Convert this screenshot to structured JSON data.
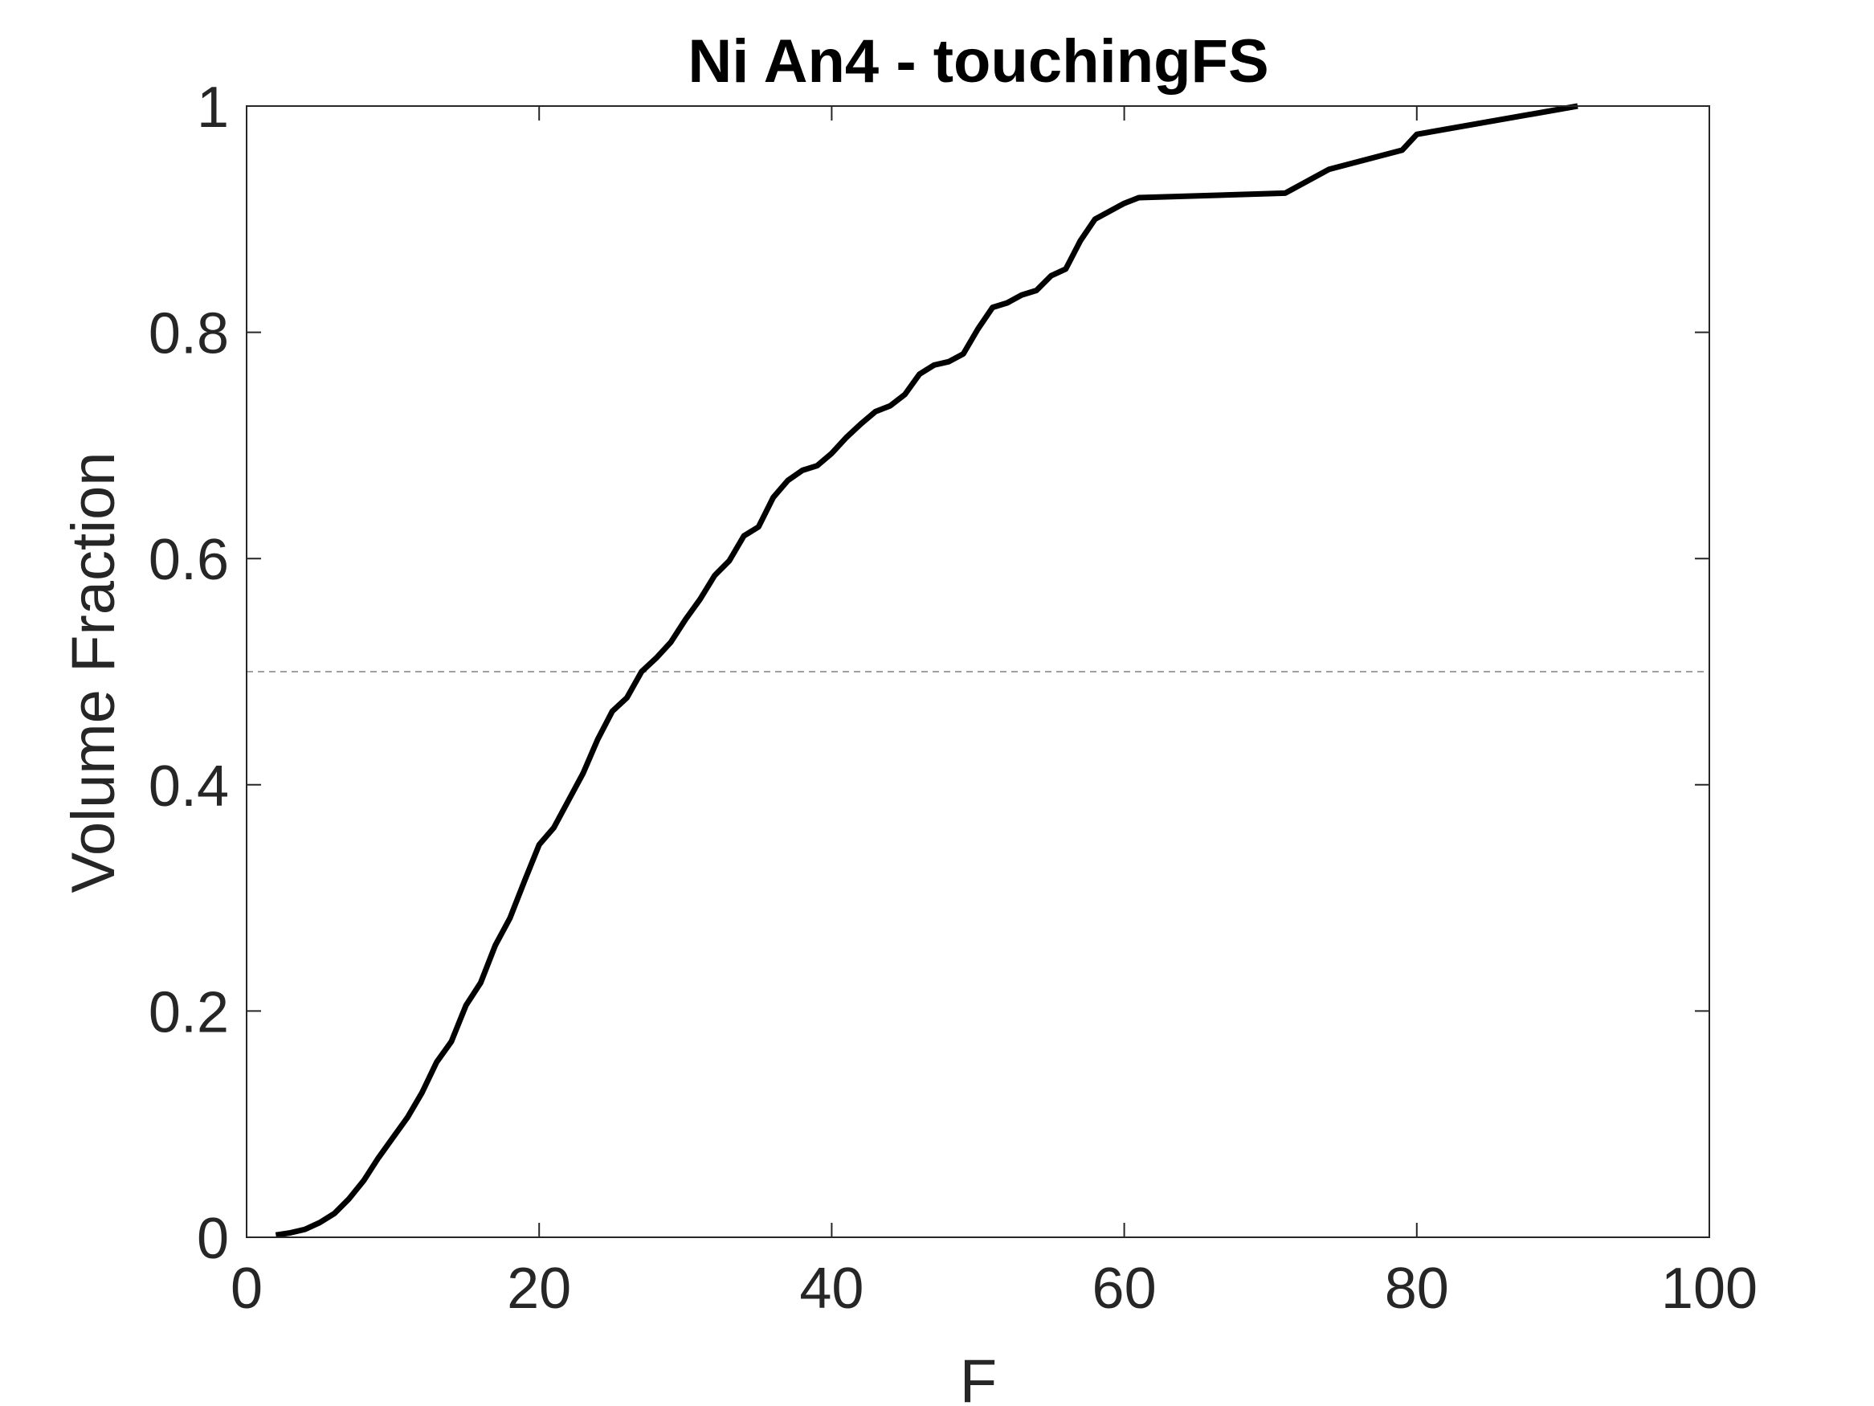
{
  "chart_data": {
    "type": "line",
    "title": "Ni An4 - touchingFS",
    "xlabel": "F",
    "ylabel": "Volume Fraction",
    "xlim": [
      0,
      100
    ],
    "ylim": [
      0,
      1
    ],
    "xticks": [
      0,
      20,
      40,
      60,
      80,
      100
    ],
    "yticks": [
      0,
      0.2,
      0.4,
      0.6,
      0.8,
      1
    ],
    "xtick_labels": [
      "0",
      "20",
      "40",
      "60",
      "80",
      "100"
    ],
    "ytick_labels": [
      "0",
      "0.2",
      "0.4",
      "0.6",
      "0.8",
      "1"
    ],
    "grid": false,
    "box": true,
    "reference_line": {
      "y": 0.5,
      "style": "dashed",
      "color": "#a0a0a0"
    },
    "series": [
      {
        "color": "#000000",
        "x": [
          2,
          3,
          4,
          5,
          6,
          7,
          8,
          9,
          10,
          11,
          12,
          13,
          14,
          15,
          16,
          17,
          18,
          19,
          20,
          21,
          22,
          23,
          24,
          25,
          26,
          27,
          28,
          29,
          30,
          31,
          32,
          33,
          34,
          35,
          36,
          37,
          38,
          39,
          40,
          41,
          42,
          43,
          44,
          45,
          46,
          47,
          48,
          49,
          50,
          51,
          52,
          53,
          54,
          55,
          56,
          57,
          58,
          59,
          60,
          61,
          71,
          74,
          79,
          80,
          91
        ],
        "y": [
          0.002,
          0.004,
          0.007,
          0.013,
          0.021,
          0.034,
          0.05,
          0.07,
          0.088,
          0.106,
          0.128,
          0.155,
          0.173,
          0.205,
          0.225,
          0.258,
          0.282,
          0.315,
          0.347,
          0.362,
          0.386,
          0.41,
          0.44,
          0.465,
          0.477,
          0.5,
          0.512,
          0.526,
          0.546,
          0.564,
          0.585,
          0.598,
          0.62,
          0.628,
          0.654,
          0.669,
          0.678,
          0.682,
          0.693,
          0.707,
          0.719,
          0.73,
          0.735,
          0.745,
          0.763,
          0.771,
          0.774,
          0.781,
          0.803,
          0.822,
          0.826,
          0.833,
          0.837,
          0.85,
          0.856,
          0.881,
          0.9,
          0.907,
          0.914,
          0.919,
          0.923,
          0.944,
          0.961,
          0.975,
          1.0
        ]
      }
    ]
  }
}
